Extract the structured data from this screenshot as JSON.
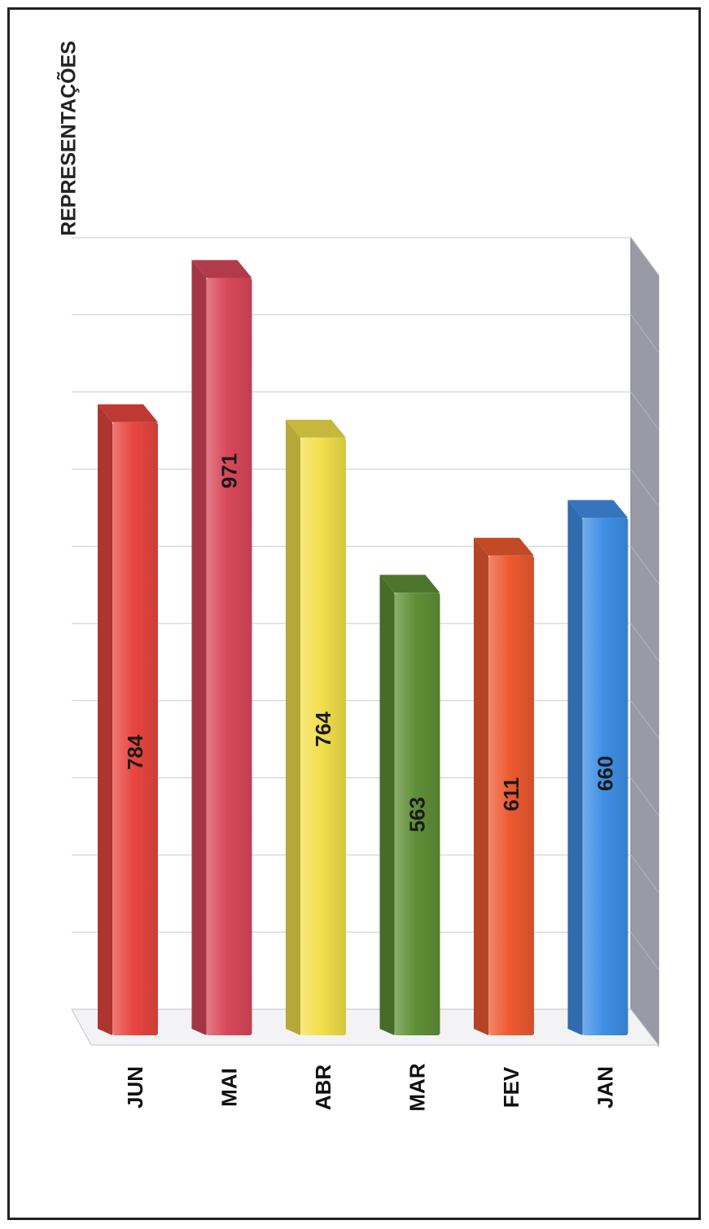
{
  "chart_data": {
    "type": "bar",
    "title": "REPRESENTAÇÕES",
    "orientation": "rotated-90-ccw",
    "categories": [
      "JUN",
      "MAI",
      "ABR",
      "MAR",
      "FEV",
      "JAN"
    ],
    "values": [
      784,
      971,
      764,
      563,
      611,
      660
    ],
    "colors": [
      "#e8463f",
      "#d9485a",
      "#f2e04a",
      "#5f8f37",
      "#ee5a30",
      "#3f8fe6"
    ],
    "ylim": [
      0,
      1000
    ],
    "grid": true,
    "legend": "none",
    "three_d": true
  }
}
